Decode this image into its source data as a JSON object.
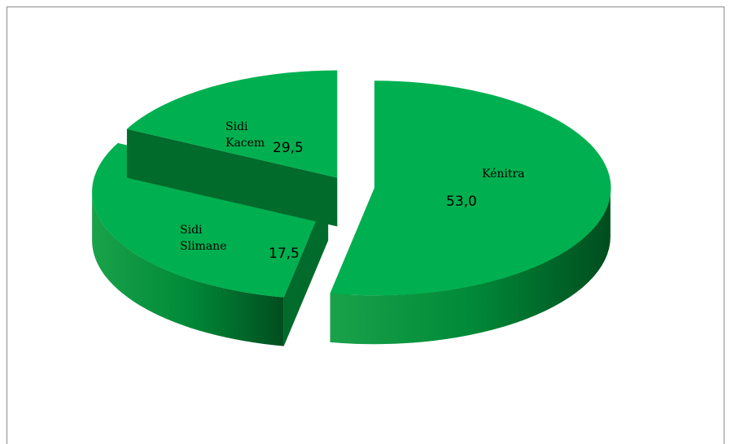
{
  "chart_data": {
    "type": "pie",
    "categories": [
      "Kénitra",
      "Sidi Kacem",
      "Sidi Slimane"
    ],
    "values": [
      53.0,
      29.5,
      17.5
    ],
    "value_labels": [
      "53,0",
      "29,5",
      "17,5"
    ],
    "color": "#00b050",
    "order": [
      0,
      2,
      1
    ]
  }
}
